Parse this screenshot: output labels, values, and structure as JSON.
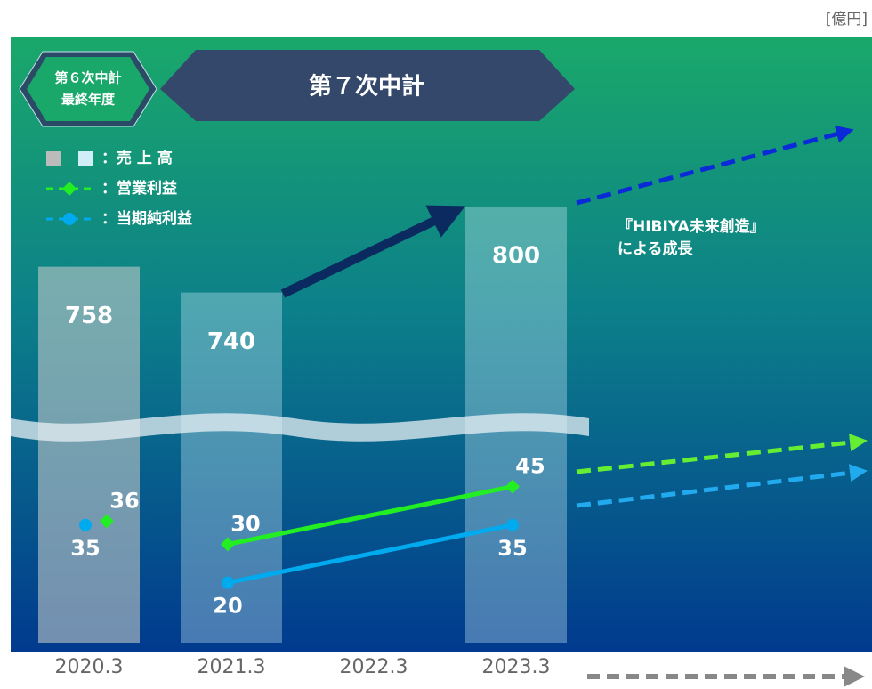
{
  "chart_data": {
    "type": "bar",
    "unit": "[億円]",
    "badges": [
      "第６次中計",
      "最終年度",
      "第７次中計"
    ],
    "annotation": [
      "『HIBIYA未来創造』",
      "による成長"
    ],
    "categories": [
      "2020.3",
      "2021.3",
      "2022.3",
      "2023.3"
    ],
    "series": [
      {
        "name": "：売 上 高",
        "color": "#cfeef8",
        "values": [
          758,
          740,
          null,
          800
        ]
      },
      {
        "name": "：営業利益",
        "color": "#22ee22",
        "values": [
          36,
          30,
          null,
          45
        ]
      },
      {
        "name": "：当期純利益",
        "color": "#00aaee",
        "values": [
          35,
          20,
          null,
          35
        ]
      }
    ]
  }
}
